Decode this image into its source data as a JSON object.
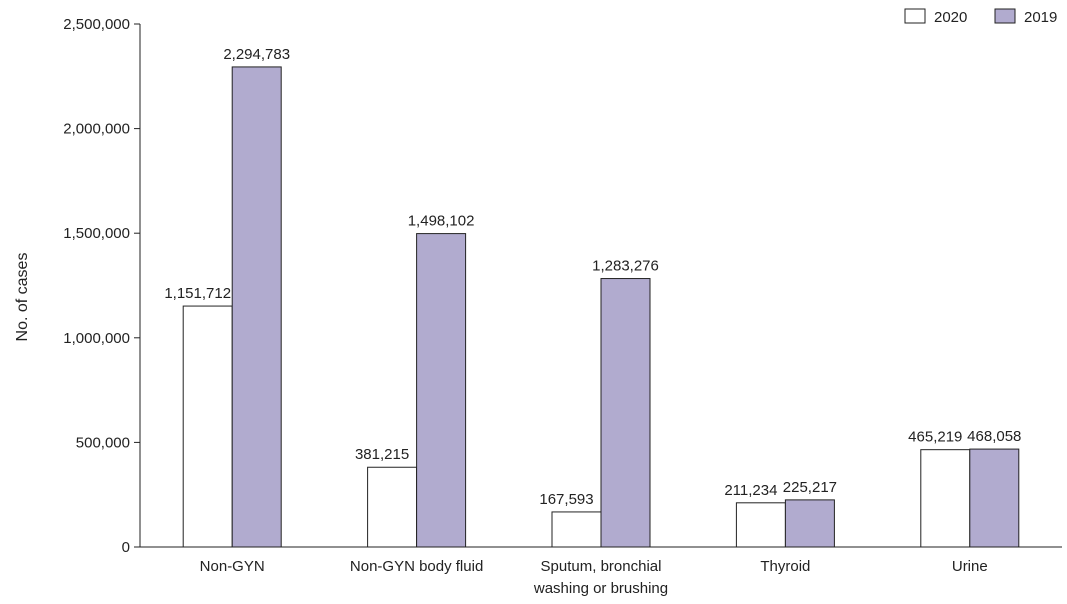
{
  "chart_data": {
    "type": "bar",
    "categories": [
      [
        "Non-GYN"
      ],
      [
        "Non-GYN body fluid"
      ],
      [
        "Sputum, bronchial",
        "washing or brushing"
      ],
      [
        "Thyroid"
      ],
      [
        "Urine"
      ]
    ],
    "series": [
      {
        "name": "2020",
        "color": "#ffffff",
        "values": [
          1151712,
          381215,
          167593,
          211234,
          465219
        ],
        "labels": [
          "1,151,712",
          "381,215",
          "167,593",
          "211,234",
          "465,219"
        ]
      },
      {
        "name": "2019",
        "color": "#b1abcf",
        "values": [
          2294783,
          1498102,
          1283276,
          225217,
          468058
        ],
        "labels": [
          "2,294,783",
          "1,498,102",
          "1,283,276",
          "225,217",
          "468,058"
        ]
      }
    ],
    "ylabel": "No. of cases",
    "xlabel": "",
    "ylim": [
      0,
      2500000
    ],
    "yticks": [
      0,
      500000,
      1000000,
      1500000,
      2000000,
      2500000
    ],
    "ytick_labels": [
      "0",
      "500,000",
      "1,000,000",
      "1,500,000",
      "2,000,000",
      "2,500,000"
    ],
    "grid": false,
    "legend_position": "top-right"
  }
}
